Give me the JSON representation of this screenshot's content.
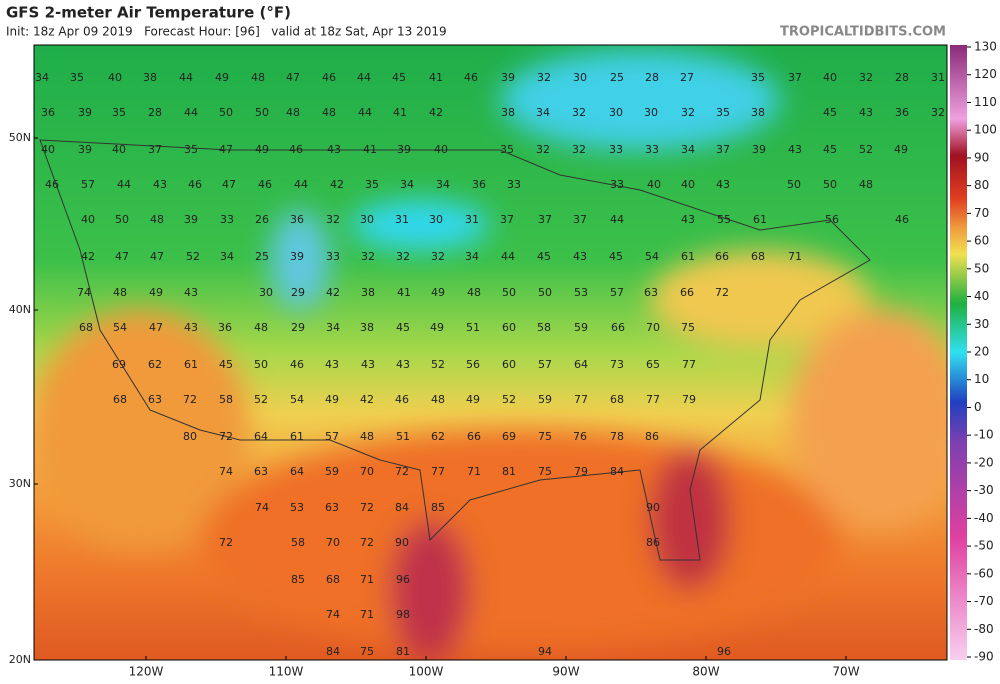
{
  "header": {
    "title": "GFS 2-meter Air Temperature (°F)",
    "subtitle": "Init: 18z Apr 09 2019   Forecast Hour: [96]   valid at 18z Sat, Apr 13 2019",
    "watermark": "TROPICALTIDBITS.COM"
  },
  "colorbar": {
    "ticks": [
      130,
      120,
      110,
      100,
      90,
      80,
      70,
      60,
      50,
      40,
      30,
      20,
      10,
      0,
      -10,
      -20,
      -30,
      -40,
      -50,
      -60,
      -70,
      -80,
      -90
    ]
  },
  "axes": {
    "lat_labels": [
      "50N",
      "40N",
      "30N",
      "20N"
    ],
    "lon_labels": [
      "120W",
      "110W",
      "100W",
      "90W",
      "80W",
      "70W"
    ]
  },
  "map": {
    "rows": [
      [
        34,
        35,
        40,
        38,
        44,
        49,
        48,
        47,
        46,
        44,
        45,
        41,
        46,
        39,
        32,
        30,
        25,
        28,
        27,
        35,
        37,
        40,
        32,
        28,
        31
      ],
      [
        36,
        39,
        35,
        28,
        44,
        50,
        50,
        48,
        48,
        44,
        41,
        42,
        38,
        34,
        32,
        30,
        30,
        32,
        35,
        38,
        45,
        43,
        36,
        32
      ],
      [
        40,
        39,
        40,
        37,
        35,
        47,
        49,
        46,
        43,
        41,
        39,
        40,
        35,
        32,
        32,
        33,
        33,
        34,
        37,
        39,
        43,
        45,
        52,
        49
      ],
      [
        46,
        57,
        44,
        43,
        46,
        47,
        46,
        44,
        42,
        35,
        34,
        34,
        36,
        33,
        33,
        40,
        40,
        43,
        50,
        50,
        48
      ],
      [
        40,
        50,
        48,
        39,
        33,
        26,
        36,
        32,
        30,
        31,
        30,
        31,
        37,
        37,
        37,
        44,
        43,
        55,
        61,
        56,
        46
      ],
      [
        42,
        47,
        47,
        52,
        34,
        25,
        39,
        33,
        32,
        32,
        32,
        34,
        44,
        45,
        43,
        45,
        54,
        61,
        66,
        68,
        71
      ],
      [
        74,
        48,
        49,
        43,
        30,
        29,
        42,
        38,
        41,
        49,
        48,
        50,
        50,
        53,
        57,
        63,
        66,
        72
      ],
      [
        68,
        54,
        47,
        43,
        36,
        48,
        29,
        34,
        38,
        45,
        49,
        51,
        60,
        58,
        59,
        66,
        70,
        75
      ],
      [
        69,
        62,
        61,
        45,
        50,
        46,
        43,
        43,
        43,
        52,
        56,
        60,
        57,
        64,
        73,
        65,
        77
      ],
      [
        68,
        63,
        72,
        58,
        52,
        54,
        49,
        42,
        46,
        48,
        49,
        52,
        59,
        77,
        68,
        77,
        79
      ],
      [
        80,
        72,
        64,
        61,
        57,
        48,
        51,
        62,
        66,
        69,
        75,
        76,
        78,
        86
      ],
      [
        74,
        63,
        64,
        59,
        70,
        72,
        77,
        71,
        81,
        75,
        79,
        84
      ],
      [
        74,
        53,
        63,
        72,
        84,
        85,
        90
      ],
      [
        72,
        58,
        70,
        72,
        90,
        86
      ],
      [
        85,
        68,
        71,
        96
      ],
      [
        74,
        71,
        98
      ],
      [
        84,
        75,
        81,
        94,
        96
      ]
    ]
  }
}
